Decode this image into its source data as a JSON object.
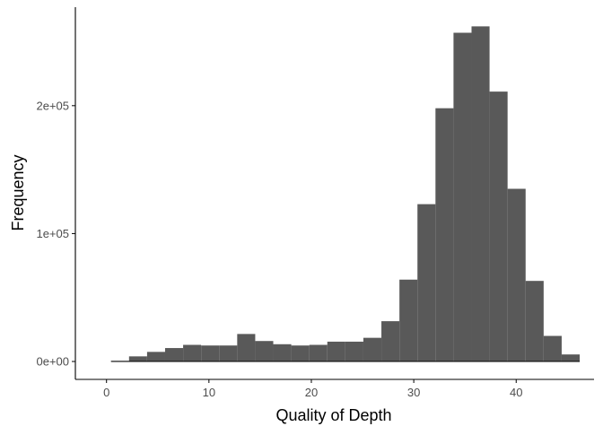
{
  "chart_data": {
    "type": "bar",
    "title": "",
    "xlabel": "Quality of Depth",
    "ylabel": "Frequency",
    "bin_width": 1.76,
    "bins": [
      {
        "x0": 0.44,
        "x1": 2.2,
        "value": 500
      },
      {
        "x0": 2.2,
        "x1": 3.96,
        "value": 4000
      },
      {
        "x0": 3.96,
        "x1": 5.72,
        "value": 7500
      },
      {
        "x0": 5.72,
        "x1": 7.48,
        "value": 10500
      },
      {
        "x0": 7.48,
        "x1": 9.24,
        "value": 13000
      },
      {
        "x0": 9.24,
        "x1": 11.0,
        "value": 12500
      },
      {
        "x0": 11.0,
        "x1": 12.76,
        "value": 12500
      },
      {
        "x0": 12.76,
        "x1": 14.52,
        "value": 21500
      },
      {
        "x0": 14.52,
        "x1": 16.28,
        "value": 16000
      },
      {
        "x0": 16.28,
        "x1": 18.04,
        "value": 13500
      },
      {
        "x0": 18.04,
        "x1": 19.8,
        "value": 12500
      },
      {
        "x0": 19.8,
        "x1": 21.56,
        "value": 13000
      },
      {
        "x0": 21.56,
        "x1": 23.32,
        "value": 15500
      },
      {
        "x0": 23.32,
        "x1": 25.08,
        "value": 15500
      },
      {
        "x0": 25.08,
        "x1": 26.84,
        "value": 18500
      },
      {
        "x0": 26.84,
        "x1": 28.6,
        "value": 31500
      },
      {
        "x0": 28.6,
        "x1": 30.36,
        "value": 64000
      },
      {
        "x0": 30.36,
        "x1": 32.12,
        "value": 123000
      },
      {
        "x0": 32.12,
        "x1": 33.88,
        "value": 198000
      },
      {
        "x0": 33.88,
        "x1": 35.64,
        "value": 257000
      },
      {
        "x0": 35.64,
        "x1": 37.4,
        "value": 262000
      },
      {
        "x0": 37.4,
        "x1": 39.16,
        "value": 211000
      },
      {
        "x0": 39.16,
        "x1": 40.92,
        "value": 135000
      },
      {
        "x0": 40.92,
        "x1": 42.68,
        "value": 63000
      },
      {
        "x0": 42.68,
        "x1": 44.44,
        "value": 20000
      },
      {
        "x0": 44.44,
        "x1": 46.2,
        "value": 5500
      }
    ],
    "x_ticks": [
      {
        "value": 0,
        "label": "0"
      },
      {
        "value": 10,
        "label": "10"
      },
      {
        "value": 20,
        "label": "20"
      },
      {
        "value": 30,
        "label": "30"
      },
      {
        "value": 40,
        "label": "40"
      }
    ],
    "y_ticks": [
      {
        "value": 0,
        "label": "0e+00"
      },
      {
        "value": 100000,
        "label": "1e+05"
      },
      {
        "value": 200000,
        "label": "2e+05"
      }
    ],
    "xlim": [
      -3.04,
      47.6
    ],
    "ylim": [
      -14000,
      277000
    ],
    "bar_color": "#595959",
    "grid": false,
    "legend": "none"
  }
}
